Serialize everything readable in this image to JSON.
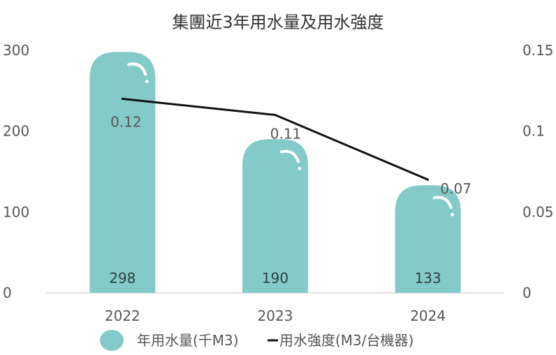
{
  "chart_data": {
    "type": "bar",
    "title": "集團近3年用水量及用水強度",
    "categories": [
      "2022",
      "2023",
      "2024"
    ],
    "series": [
      {
        "name": "年用水量(千M3)",
        "type": "bar",
        "axis": "left",
        "values": [
          298,
          190,
          133
        ],
        "labels": [
          "298",
          "190",
          "133"
        ]
      },
      {
        "name": "用水強度(M3/台機器)",
        "type": "line",
        "axis": "right",
        "values": [
          0.12,
          0.11,
          0.07
        ],
        "labels": [
          "0.12",
          "0.11",
          "0.07"
        ]
      }
    ],
    "y_left": {
      "ticks": [
        "0",
        "100",
        "200",
        "300"
      ],
      "tick_values": [
        0,
        100,
        200,
        300
      ],
      "ylim": [
        0,
        300
      ]
    },
    "y_right": {
      "ticks": [
        "0",
        "0.05",
        "0.1",
        "0.15"
      ],
      "tick_values": [
        0,
        0.05,
        0.1,
        0.15
      ],
      "ylim": [
        0,
        0.15
      ]
    },
    "grid": false,
    "legend": "bottom",
    "colors": {
      "bar": "#84cac9",
      "line": "#111111",
      "axis": "#d9d9d9"
    }
  }
}
